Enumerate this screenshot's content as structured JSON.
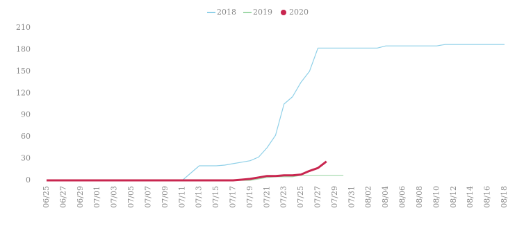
{
  "chart_data": {
    "type": "line",
    "categories": [
      "06/25",
      null,
      "06/27",
      null,
      "06/29",
      null,
      "07/01",
      null,
      "07/03",
      null,
      "07/05",
      null,
      "07/07",
      null,
      "07/09",
      null,
      "07/11",
      null,
      "07/13",
      null,
      "07/15",
      null,
      "07/17",
      null,
      "07/19",
      null,
      "07/21",
      null,
      "07/23",
      null,
      "07/25",
      null,
      "07/27",
      null,
      "07/29",
      null,
      "07/31",
      null,
      "08/02",
      null,
      "08/04",
      null,
      "08/06",
      null,
      "08/08",
      null,
      "08/10",
      null,
      "08/12",
      null,
      "08/14",
      null,
      "08/16",
      null,
      "08/18"
    ],
    "series": [
      {
        "name": "2018",
        "color": "#8fd0e8",
        "values": [
          0,
          0,
          0,
          0,
          0,
          0,
          0,
          0,
          0,
          0,
          0,
          0,
          0,
          0,
          0,
          0,
          0,
          10,
          20,
          20,
          20,
          21,
          23,
          25,
          27,
          32,
          45,
          62,
          105,
          115,
          135,
          150,
          182,
          182,
          182,
          182,
          182,
          182,
          182,
          182,
          185,
          185,
          185,
          185,
          185,
          185,
          185,
          187,
          187,
          187,
          187,
          187,
          187,
          187,
          187
        ]
      },
      {
        "name": "2019",
        "color": "#9fd8a8",
        "values": [
          0,
          0,
          0,
          0,
          0,
          0,
          0,
          0,
          0,
          0,
          0,
          0,
          0,
          0,
          0,
          0,
          0,
          0,
          0,
          0,
          0,
          0,
          0,
          0,
          0,
          2,
          4,
          5,
          5,
          5,
          7,
          7,
          7,
          7,
          7,
          7,
          null,
          null,
          null,
          null,
          null,
          null,
          null,
          null,
          null,
          null,
          null,
          null,
          null,
          null,
          null,
          null,
          null,
          null,
          null
        ]
      },
      {
        "name": "2020",
        "color": "#c8264f",
        "values": [
          0,
          0,
          0,
          0,
          0,
          0,
          0,
          0,
          0,
          0,
          0,
          0,
          0,
          0,
          0,
          0,
          0,
          0,
          0,
          0,
          0,
          0,
          0,
          1,
          2,
          4,
          6,
          6,
          7,
          7,
          8,
          13,
          17,
          26,
          null,
          null,
          null,
          null,
          null,
          null,
          null,
          null,
          null,
          null,
          null,
          null,
          null,
          null,
          null,
          null,
          null,
          null,
          null,
          null,
          null
        ]
      }
    ],
    "ylim": [
      0,
      210
    ],
    "yticks": [
      0,
      30,
      60,
      90,
      120,
      150,
      180,
      210
    ]
  }
}
